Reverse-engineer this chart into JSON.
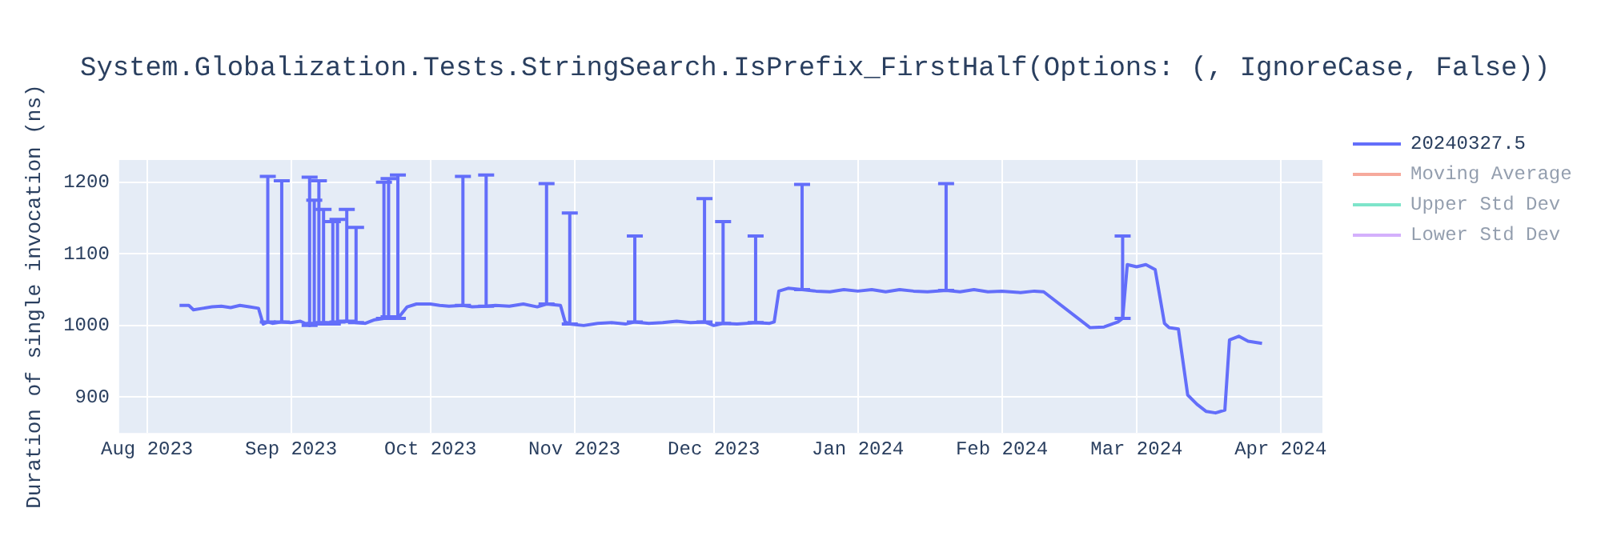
{
  "chart_data": {
    "type": "line",
    "title": "System.Globalization.Tests.StringSearch.IsPrefix_FirstHalf(Options: (, IgnoreCase, False))",
    "ylabel": "Duration of single invocation (ns)",
    "x": [
      "2023-08-08",
      "2023-08-10",
      "2023-08-11",
      "2023-08-13",
      "2023-08-15",
      "2023-08-17",
      "2023-08-19",
      "2023-08-21",
      "2023-08-23",
      "2023-08-25",
      "2023-08-26",
      "2023-08-27",
      "2023-08-28",
      "2023-08-30",
      "2023-09-01",
      "2023-09-03",
      "2023-09-05",
      "2023-09-06",
      "2023-09-07",
      "2023-09-08",
      "2023-09-10",
      "2023-09-11",
      "2023-09-13",
      "2023-09-15",
      "2023-09-17",
      "2023-09-19",
      "2023-09-21",
      "2023-09-22",
      "2023-09-24",
      "2023-09-26",
      "2023-09-28",
      "2023-10-01",
      "2023-10-03",
      "2023-10-05",
      "2023-10-08",
      "2023-10-10",
      "2023-10-13",
      "2023-10-15",
      "2023-10-18",
      "2023-10-21",
      "2023-10-24",
      "2023-10-26",
      "2023-10-29",
      "2023-10-30",
      "2023-10-31",
      "2023-11-03",
      "2023-11-06",
      "2023-11-09",
      "2023-11-12",
      "2023-11-14",
      "2023-11-17",
      "2023-11-20",
      "2023-11-23",
      "2023-11-26",
      "2023-11-29",
      "2023-12-01",
      "2023-12-03",
      "2023-12-06",
      "2023-12-08",
      "2023-12-10",
      "2023-12-13",
      "2023-12-14",
      "2023-12-15",
      "2023-12-17",
      "2023-12-20",
      "2023-12-23",
      "2023-12-26",
      "2023-12-29",
      "2024-01-01",
      "2024-01-04",
      "2024-01-07",
      "2024-01-10",
      "2024-01-13",
      "2024-01-16",
      "2024-01-20",
      "2024-01-23",
      "2024-01-26",
      "2024-01-29",
      "2024-02-01",
      "2024-02-05",
      "2024-02-08",
      "2024-02-10",
      "2024-02-20",
      "2024-02-23",
      "2024-02-26",
      "2024-02-27",
      "2024-02-28",
      "2024-03-01",
      "2024-03-03",
      "2024-03-05",
      "2024-03-07",
      "2024-03-08",
      "2024-03-10",
      "2024-03-12",
      "2024-03-14",
      "2024-03-16",
      "2024-03-18",
      "2024-03-20",
      "2024-03-21",
      "2024-03-23",
      "2024-03-25",
      "2024-03-28"
    ],
    "series": [
      {
        "name": "20240327.5",
        "color": "#636efa",
        "values": [
          1028,
          1028,
          1022,
          1024,
          1026,
          1027,
          1025,
          1028,
          1026,
          1024,
          1002,
          1005,
          1003,
          1005,
          1004,
          1006,
          1000,
          1003,
          1002,
          1004,
          1002,
          1005,
          1006,
          1004,
          1003,
          1008,
          1010,
          1012,
          1010,
          1026,
          1030,
          1030,
          1028,
          1027,
          1028,
          1026,
          1027,
          1028,
          1027,
          1030,
          1026,
          1030,
          1028,
          1005,
          1002,
          1000,
          1003,
          1004,
          1002,
          1005,
          1003,
          1004,
          1006,
          1004,
          1005,
          1000,
          1003,
          1002,
          1003,
          1004,
          1003,
          1005,
          1048,
          1052,
          1050,
          1048,
          1047,
          1050,
          1048,
          1050,
          1047,
          1050,
          1048,
          1047,
          1049,
          1047,
          1050,
          1047,
          1048,
          1046,
          1048,
          1047,
          997,
          998,
          1005,
          1010,
          1085,
          1082,
          1085,
          1078,
          1003,
          997,
          995,
          903,
          890,
          880,
          878,
          882,
          980,
          985,
          978,
          975
        ],
        "errors": [
          null,
          null,
          null,
          null,
          null,
          null,
          null,
          null,
          null,
          null,
          null,
          [
            1005,
            1208
          ],
          null,
          [
            1005,
            1202
          ],
          null,
          null,
          [
            1000,
            1207
          ],
          [
            1003,
            1175
          ],
          [
            1002,
            1202
          ],
          [
            1004,
            1162
          ],
          [
            1002,
            1145
          ],
          [
            1005,
            1148
          ],
          [
            1006,
            1162
          ],
          [
            1004,
            1137
          ],
          null,
          null,
          [
            1010,
            1200
          ],
          [
            1012,
            1205
          ],
          [
            1010,
            1210
          ],
          null,
          null,
          null,
          null,
          null,
          [
            1028,
            1208
          ],
          null,
          [
            1027,
            1210
          ],
          null,
          null,
          null,
          null,
          [
            1030,
            1198
          ],
          null,
          null,
          [
            1002,
            1157
          ],
          null,
          null,
          null,
          null,
          [
            1005,
            1125
          ],
          null,
          null,
          null,
          null,
          [
            1005,
            1177
          ],
          null,
          [
            1003,
            1145
          ],
          null,
          null,
          [
            1004,
            1125
          ],
          null,
          null,
          null,
          null,
          [
            1050,
            1197
          ],
          null,
          null,
          null,
          null,
          null,
          null,
          null,
          null,
          null,
          [
            1049,
            1198
          ],
          null,
          null,
          null,
          null,
          null,
          null,
          null,
          null,
          null,
          null,
          [
            1010,
            1125
          ],
          null,
          null,
          null,
          null,
          null,
          null,
          null,
          null,
          null,
          null,
          null,
          null,
          null,
          null,
          null,
          null
        ]
      },
      {
        "name": "Moving Average",
        "color": "#ef553b",
        "values": [
          null,
          null,
          null,
          null,
          null,
          null,
          null,
          null,
          null,
          null,
          null,
          null,
          null,
          null,
          null,
          null,
          null,
          null,
          null,
          null,
          null,
          null,
          null,
          null,
          null,
          null,
          null,
          null,
          null,
          null,
          null,
          null,
          null,
          null,
          null,
          null,
          null,
          null,
          null,
          null,
          null,
          null,
          null,
          null,
          null,
          null,
          null,
          null,
          null,
          null,
          null,
          null,
          null,
          null,
          null,
          null,
          null,
          null,
          null,
          null,
          null,
          null,
          null,
          null,
          null,
          null,
          null,
          null,
          null,
          null,
          null,
          null,
          null,
          null,
          null,
          null,
          null,
          null,
          null,
          null,
          null,
          null,
          null,
          null,
          null,
          null,
          null,
          null,
          null,
          null,
          null,
          null,
          null,
          null,
          null,
          null,
          null,
          null,
          null,
          null,
          null,
          null
        ]
      },
      {
        "name": "Upper Std Dev",
        "color": "#00cc96",
        "values": [
          null,
          null,
          null,
          null,
          null,
          null,
          null,
          null,
          null,
          null,
          null,
          null,
          null,
          null,
          null,
          null,
          null,
          null,
          null,
          null,
          null,
          null,
          null,
          null,
          null,
          null,
          null,
          null,
          null,
          null,
          null,
          null,
          null,
          null,
          null,
          null,
          null,
          null,
          null,
          null,
          null,
          null,
          null,
          null,
          null,
          null,
          null,
          null,
          null,
          null,
          null,
          null,
          null,
          null,
          null,
          null,
          null,
          null,
          null,
          null,
          null,
          null,
          null,
          null,
          null,
          null,
          null,
          null,
          null,
          null,
          null,
          null,
          null,
          null,
          null,
          null,
          null,
          null,
          null,
          null,
          null,
          null,
          null,
          null,
          null,
          null,
          null,
          null,
          null,
          null,
          null,
          null,
          null,
          null,
          null,
          null,
          null,
          null,
          null,
          null,
          null,
          null
        ]
      },
      {
        "name": "Lower Std Dev",
        "color": "#ab63fa",
        "values": [
          null,
          null,
          null,
          null,
          null,
          null,
          null,
          null,
          null,
          null,
          null,
          null,
          null,
          null,
          null,
          null,
          null,
          null,
          null,
          null,
          null,
          null,
          null,
          null,
          null,
          null,
          null,
          null,
          null,
          null,
          null,
          null,
          null,
          null,
          null,
          null,
          null,
          null,
          null,
          null,
          null,
          null,
          null,
          null,
          null,
          null,
          null,
          null,
          null,
          null,
          null,
          null,
          null,
          null,
          null,
          null,
          null,
          null,
          null,
          null,
          null,
          null,
          null,
          null,
          null,
          null,
          null,
          null,
          null,
          null,
          null,
          null,
          null,
          null,
          null,
          null,
          null,
          null,
          null,
          null,
          null,
          null,
          null,
          null,
          null,
          null,
          null,
          null,
          null,
          null,
          null,
          null,
          null,
          null,
          null,
          null,
          null,
          null,
          null,
          null,
          null,
          null
        ]
      }
    ],
    "xlim": [
      "2023-07-26",
      "2024-04-10"
    ],
    "xticks": [
      {
        "value": "2023-08-01",
        "label": "Aug 2023"
      },
      {
        "value": "2023-09-01",
        "label": "Sep 2023"
      },
      {
        "value": "2023-10-01",
        "label": "Oct 2023"
      },
      {
        "value": "2023-11-01",
        "label": "Nov 2023"
      },
      {
        "value": "2023-12-01",
        "label": "Dec 2023"
      },
      {
        "value": "2024-01-01",
        "label": "Jan 2024"
      },
      {
        "value": "2024-02-01",
        "label": "Feb 2024"
      },
      {
        "value": "2024-03-01",
        "label": "Mar 2024"
      },
      {
        "value": "2024-04-01",
        "label": "Apr 2024"
      }
    ],
    "ylim": [
      850,
      1231
    ],
    "yticks": [
      900,
      1000,
      1100,
      1200
    ],
    "grid": true,
    "legend": "right",
    "marker": "none",
    "line_style": "solid"
  }
}
